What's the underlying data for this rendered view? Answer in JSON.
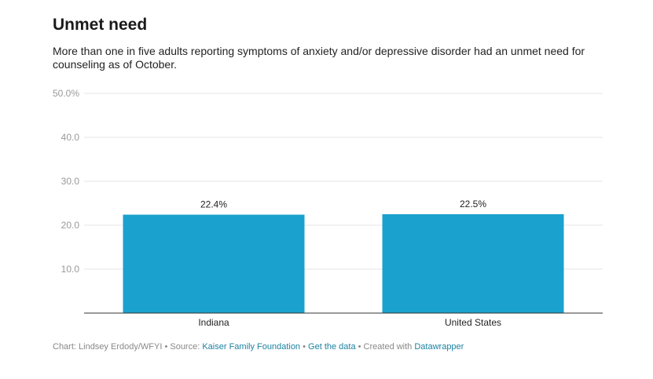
{
  "title": "Unmet need",
  "subtitle": "More than one in five adults reporting symptoms of anxiety and/or depressive disorder had an unmet need for counseling as of October.",
  "footer": {
    "chart_prefix": "Chart: Lindsey Erdody/WFYI",
    "sep1": " • ",
    "source_prefix": "Source: ",
    "source_link": "Kaiser Family Foundation",
    "sep2": " • ",
    "data_link": "Get the data",
    "sep3": " • ",
    "created_prefix": "Created with ",
    "created_link": "Datawrapper"
  },
  "colors": {
    "bar": "#1ba1cd",
    "grid": "#e4e4e4",
    "axis": "#333333",
    "tick_label": "#999999",
    "link": "#1d81a2"
  },
  "chart_data": {
    "type": "bar",
    "categories": [
      "Indiana",
      "United States"
    ],
    "values": [
      22.4,
      22.5
    ],
    "value_labels": [
      "22.4%",
      "22.5%"
    ],
    "ylim": [
      0,
      50
    ],
    "yticks": [
      10,
      20,
      30,
      40,
      50
    ],
    "ytick_labels": [
      "10.0",
      "20.0",
      "30.0",
      "40.0",
      "50.0%"
    ],
    "grid": true,
    "xlabel": "",
    "ylabel": ""
  }
}
